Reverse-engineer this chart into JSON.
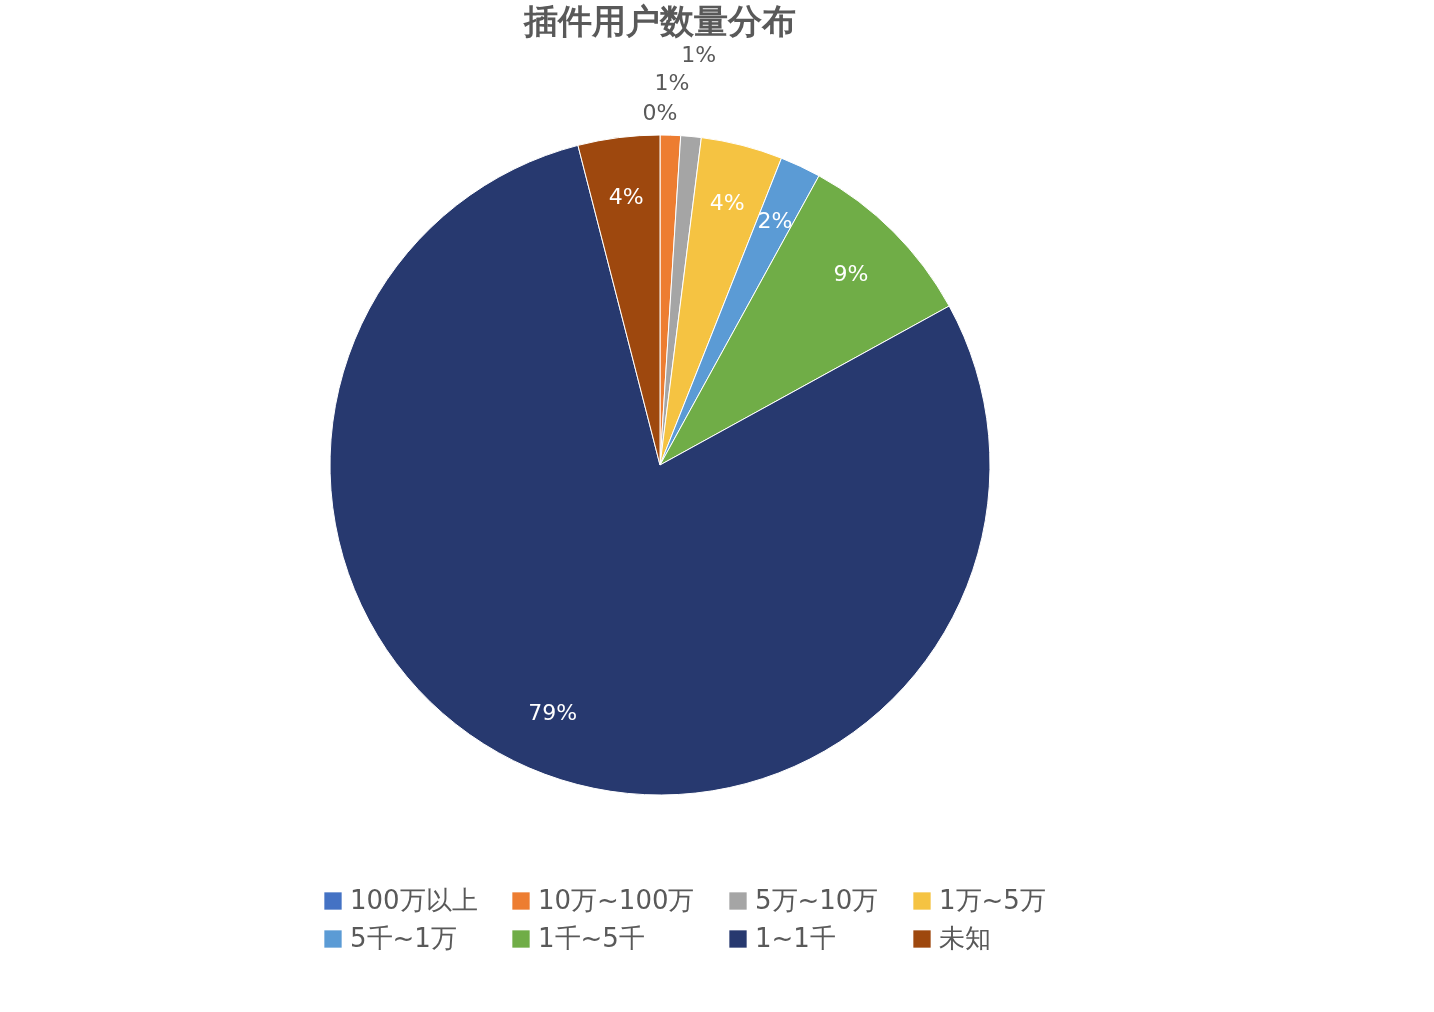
{
  "chart_data": {
    "type": "pie",
    "title": "插件用户数量分布",
    "categories": [
      "100万以上",
      "10万~100万",
      "5万~10万",
      "1万~5万",
      "5千~1万",
      "1千~5千",
      "1~1千",
      "未知"
    ],
    "values": [
      0,
      1,
      1,
      4,
      2,
      9,
      79,
      4
    ],
    "value_labels": [
      "0%",
      "1%",
      "1%",
      "4%",
      "2%",
      "9%",
      "79%",
      "4%"
    ],
    "colors": [
      "#4472c4",
      "#ed7d31",
      "#a5a5a5",
      "#f5c342",
      "#5b9bd5",
      "#70ad47",
      "#27396f",
      "#9e480e"
    ],
    "legend": "bottom"
  }
}
